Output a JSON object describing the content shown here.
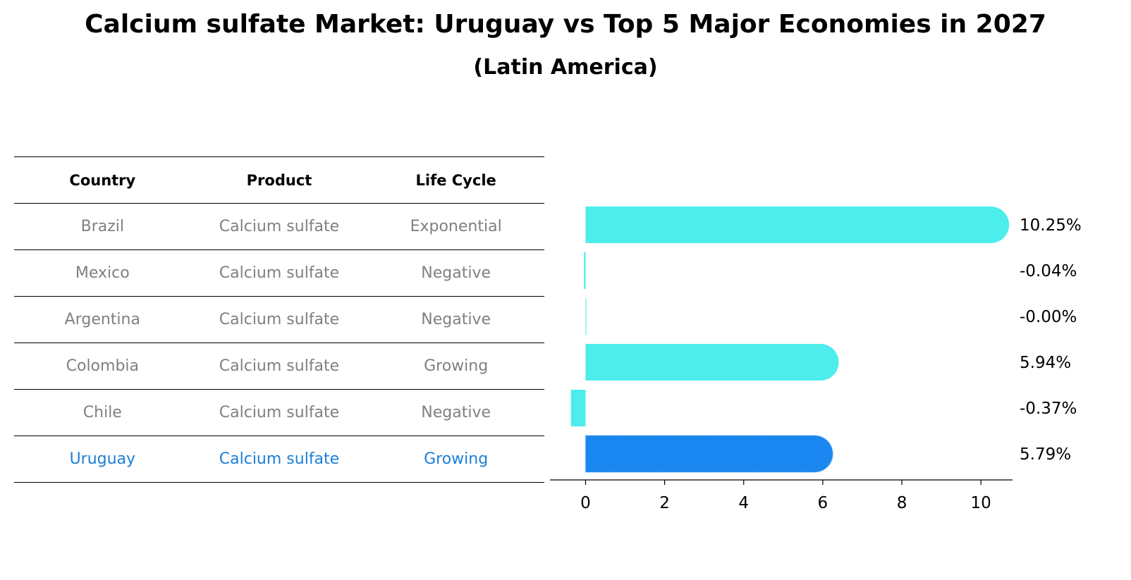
{
  "title": "Calcium sulfate Market: Uruguay vs Top 5 Major Economies in 2027",
  "subtitle": "(Latin America)",
  "table": {
    "headers": [
      "Country",
      "Product",
      "Life Cycle"
    ],
    "rows": [
      [
        "Brazil",
        "Calcium sulfate",
        "Exponential"
      ],
      [
        "Mexico",
        "Calcium sulfate",
        "Negative"
      ],
      [
        "Argentina",
        "Calcium sulfate",
        "Negative"
      ],
      [
        "Colombia",
        "Calcium sulfate",
        "Growing"
      ],
      [
        "Chile",
        "Calcium sulfate",
        "Negative"
      ],
      [
        "Uruguay",
        "Calcium sulfate",
        "Growing"
      ]
    ],
    "highlight_row": 5
  },
  "chart_data": {
    "type": "bar",
    "orientation": "horizontal",
    "categories": [
      "Brazil",
      "Mexico",
      "Argentina",
      "Colombia",
      "Chile",
      "Uruguay"
    ],
    "values": [
      10.25,
      -0.04,
      -0.0,
      5.94,
      -0.37,
      5.79
    ],
    "value_labels": [
      "10.25%",
      "-0.04%",
      "-0.00%",
      "5.94%",
      "-0.37%",
      "5.79%"
    ],
    "xlim": [
      -0.9,
      10.8
    ],
    "xticks": [
      0,
      2,
      4,
      6,
      8,
      10
    ],
    "colors": {
      "default": "#4dedec",
      "highlight": "#1a86f0"
    },
    "highlight_index": 5
  }
}
